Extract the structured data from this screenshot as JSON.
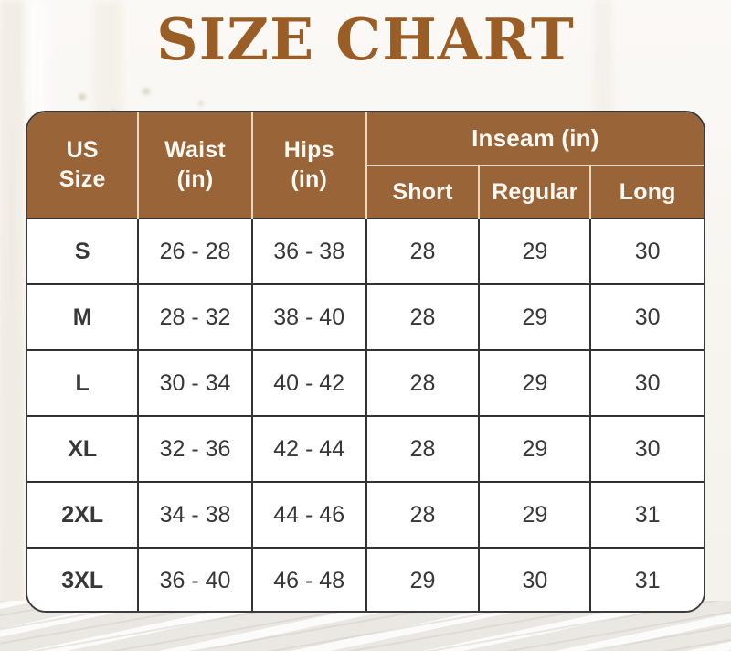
{
  "page": {
    "title": "SIZE CHART"
  },
  "colors": {
    "title_text": "#9b5d26",
    "header_bg": "#996438",
    "header_text": "#fcf8f2",
    "header_divider": "#e9d6bc",
    "body_text": "#383838",
    "body_divider": "#333333",
    "table_border": "#3b3b3b",
    "page_bg": "#f7f4ef"
  },
  "table": {
    "headers": {
      "us_size": {
        "line1": "US",
        "line2": "Size"
      },
      "waist": {
        "line1": "Waist",
        "line2": "(in)"
      },
      "hips": {
        "line1": "Hips",
        "line2": "(in)"
      },
      "inseam_group": "Inseam (in)",
      "inseam_short": "Short",
      "inseam_regular": "Regular",
      "inseam_long": "Long"
    },
    "rows": [
      {
        "size": "S",
        "waist": "26 - 28",
        "hips": "36 - 38",
        "short": "28",
        "regular": "29",
        "long": "30"
      },
      {
        "size": "M",
        "waist": "28 - 32",
        "hips": "38 - 40",
        "short": "28",
        "regular": "29",
        "long": "30"
      },
      {
        "size": "L",
        "waist": "30 - 34",
        "hips": "40 - 42",
        "short": "28",
        "regular": "29",
        "long": "30"
      },
      {
        "size": "XL",
        "waist": "32 - 36",
        "hips": "42 - 44",
        "short": "28",
        "regular": "29",
        "long": "30"
      },
      {
        "size": "2XL",
        "waist": "34 - 38",
        "hips": "44 - 46",
        "short": "28",
        "regular": "29",
        "long": "31"
      },
      {
        "size": "3XL",
        "waist": "36 - 40",
        "hips": "46 - 48",
        "short": "29",
        "regular": "30",
        "long": "31"
      }
    ]
  }
}
